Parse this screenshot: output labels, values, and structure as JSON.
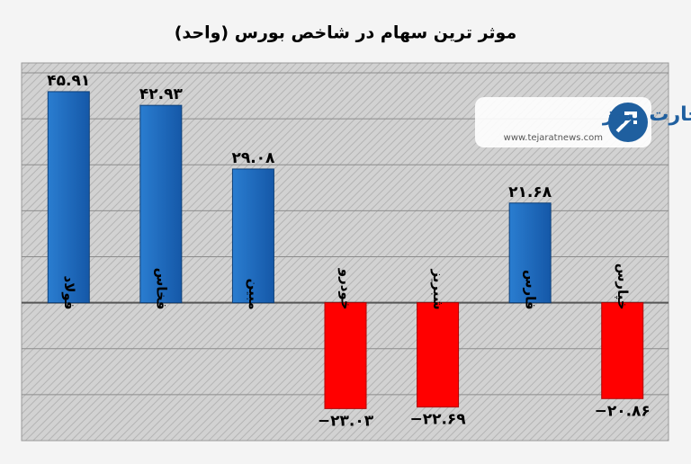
{
  "chart_data": {
    "type": "bar",
    "title": "موثر ترین سهام در شاخص بورس (واحد)",
    "categories": [
      "فولاد",
      "فخاس",
      "مبین",
      "خودرو",
      "شبریز",
      "فارس",
      "خپارس"
    ],
    "values": [
      45.91,
      42.93,
      29.08,
      -23.03,
      -22.69,
      21.68,
      -20.86
    ],
    "value_labels": [
      "۴۵.۹۱",
      "۴۲.۹۳",
      "۲۹.۰۸",
      "−۲۳.۰۳",
      "−۲۲.۶۹",
      "۲۱.۶۸",
      "−۲۰.۸۶"
    ],
    "positive_color": "#1f6fc0",
    "negative_color": "#ff0000",
    "ylim": [
      -30,
      50
    ],
    "yticks": [
      -30,
      -20,
      -10,
      0,
      10,
      20,
      30,
      40,
      50
    ],
    "grid": true
  },
  "logo": {
    "name": "تجارت نیوز",
    "url": "www.tejaratnews.com"
  }
}
